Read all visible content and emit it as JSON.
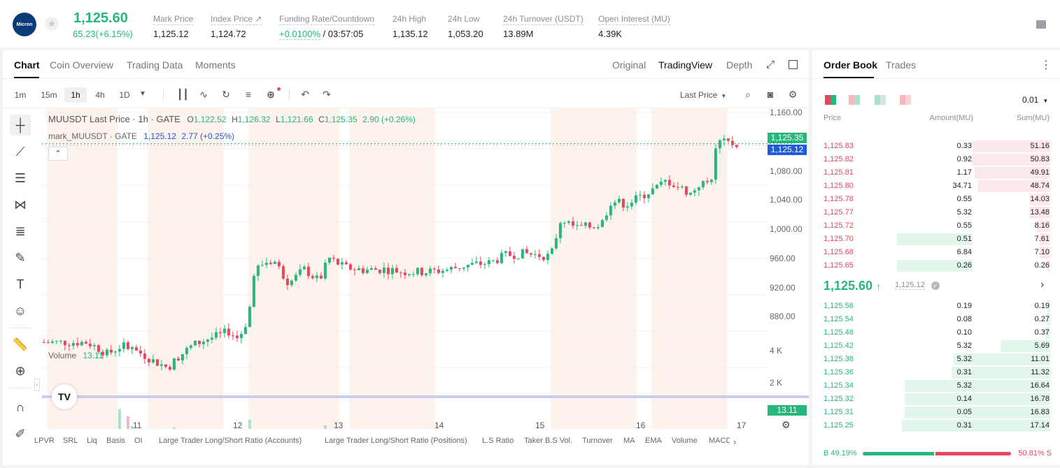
{
  "header": {
    "logo_text": "Micron",
    "last_price": "1,125.60",
    "change": "65.23(+6.15%)",
    "stats": [
      {
        "label": "Mark Price",
        "value": "1,125.12"
      },
      {
        "label": "Index Price ↗",
        "value": "1,124.72"
      },
      {
        "label": "Funding Rate/Countdown",
        "value": "+0.0100%",
        "value2": " / 03:57:05"
      },
      {
        "label": "24h High",
        "value": "1,135.12"
      },
      {
        "label": "24h Low",
        "value": "1,053.20"
      },
      {
        "label": "24h Turnover (USDT)",
        "value": "13.89M"
      },
      {
        "label": "Open Interest (MU)",
        "value": "4.39K"
      }
    ]
  },
  "chart_panel": {
    "tabs": [
      "Chart",
      "Coin Overview",
      "Trading Data",
      "Moments"
    ],
    "view_tabs": [
      "Original",
      "TradingView",
      "Depth"
    ],
    "intervals": [
      "1m",
      "15m",
      "1h",
      "4h",
      "1D"
    ],
    "active_interval": "1h",
    "price_type": "Last Price",
    "legend_main_name": "MUUSDT Last Price · 1h · GATE",
    "legend_o": "1,122.52",
    "legend_h": "1,126.32",
    "legend_l": "1,121.66",
    "legend_c": "1,125.35",
    "legend_chg": "2.90 (+0.26%)",
    "legend_mark_name": "mark_MUUSDT · GATE",
    "legend_mark_val": "1,125.12",
    "legend_mark_chg": "2.77 (+0.25%)",
    "volume_label": "Volume",
    "volume_value": "13.11",
    "indicators": [
      "LPVR",
      "SRL",
      "Liq",
      "Basis",
      "OI",
      "Large Trader Long/Short Ratio (Accounts)",
      "Large Trader Long/Short Ratio (Positions)",
      "L.S Ratio",
      "Taker B.S Vol.",
      "Turnover",
      "MA",
      "EMA",
      "Volume",
      "MACD"
    ],
    "colors": {
      "up": "#26b87a",
      "down": "#e5485d",
      "mark": "#1e5bd8"
    }
  },
  "chart_data": {
    "type": "candlestick",
    "symbol": "MUUSDT",
    "interval": "1h",
    "x_tick_labels": [
      "11",
      "12",
      "13",
      "14",
      "15",
      "16",
      "17"
    ],
    "y_tick_labels": [
      "1,160.00",
      "1,120.00",
      "1,080.00",
      "1,040.00",
      "1,000.00",
      "960.00",
      "920.00",
      "880.00"
    ],
    "ylim": [
      853,
      1161
    ],
    "volume_tick_labels": [
      "4 K",
      "2 K"
    ],
    "volume_ylim": [
      0,
      4500
    ],
    "last_price_tag": "1,125.35",
    "mark_price_tag": "1,125.12",
    "volume_tag": "13.11",
    "close_path": [
      {
        "day": 10.45,
        "close": 908
      },
      {
        "day": 10.55,
        "close": 902
      },
      {
        "day": 10.65,
        "close": 895
      },
      {
        "day": 10.8,
        "close": 905
      },
      {
        "day": 11.0,
        "close": 895
      },
      {
        "day": 11.1,
        "close": 888
      },
      {
        "day": 11.25,
        "close": 880
      },
      {
        "day": 11.35,
        "close": 892
      },
      {
        "day": 11.5,
        "close": 905
      },
      {
        "day": 11.65,
        "close": 912
      },
      {
        "day": 11.75,
        "close": 915
      },
      {
        "day": 11.85,
        "close": 920
      },
      {
        "day": 11.95,
        "close": 912
      },
      {
        "day": 12.05,
        "close": 935
      },
      {
        "day": 12.1,
        "close": 985
      },
      {
        "day": 12.2,
        "close": 995
      },
      {
        "day": 12.3,
        "close": 998
      },
      {
        "day": 12.45,
        "close": 972
      },
      {
        "day": 12.6,
        "close": 988
      },
      {
        "day": 12.75,
        "close": 975
      },
      {
        "day": 12.85,
        "close": 1000
      },
      {
        "day": 13.0,
        "close": 990
      },
      {
        "day": 13.2,
        "close": 987
      },
      {
        "day": 13.4,
        "close": 988
      },
      {
        "day": 13.6,
        "close": 985
      },
      {
        "day": 13.8,
        "close": 985
      },
      {
        "day": 14.0,
        "close": 987
      },
      {
        "day": 14.2,
        "close": 992
      },
      {
        "day": 14.45,
        "close": 995
      },
      {
        "day": 14.6,
        "close": 1003
      },
      {
        "day": 14.75,
        "close": 1005
      },
      {
        "day": 14.8,
        "close": 1005
      },
      {
        "day": 15.05,
        "close": 1002
      },
      {
        "day": 15.15,
        "close": 1043
      },
      {
        "day": 15.3,
        "close": 1033
      },
      {
        "day": 15.45,
        "close": 1035
      },
      {
        "day": 15.55,
        "close": 1037
      },
      {
        "day": 15.65,
        "close": 1063
      },
      {
        "day": 15.8,
        "close": 1059
      },
      {
        "day": 15.95,
        "close": 1068
      },
      {
        "day": 16.1,
        "close": 1077
      },
      {
        "day": 16.2,
        "close": 1085
      },
      {
        "day": 16.25,
        "close": 1082
      },
      {
        "day": 16.35,
        "close": 1076
      },
      {
        "day": 16.45,
        "close": 1070
      },
      {
        "day": 16.5,
        "close": 1080
      },
      {
        "day": 16.6,
        "close": 1082
      },
      {
        "day": 16.65,
        "close": 1090
      },
      {
        "day": 16.7,
        "close": 1127
      },
      {
        "day": 16.8,
        "close": 1126
      },
      {
        "day": 16.9,
        "close": 1125
      }
    ]
  },
  "order_book": {
    "tabs": [
      "Order Book",
      "Trades"
    ],
    "precision": "0.01",
    "headers": {
      "price": "Price",
      "amount": "Amount(MU)",
      "sum": "Sum(MU)"
    },
    "asks": [
      {
        "price": "1,125.83",
        "amount": "0.33",
        "sum": "51.16",
        "sum_frac": 0.3,
        "amt_frac": 0
      },
      {
        "price": "1,125.82",
        "amount": "0.92",
        "sum": "50.83",
        "sum_frac": 0.3,
        "amt_frac": 0
      },
      {
        "price": "1,125.81",
        "amount": "1.17",
        "sum": "49.91",
        "sum_frac": 0.29,
        "amt_frac": 0
      },
      {
        "price": "1,125.80",
        "amount": "34.71",
        "sum": "48.74",
        "sum_frac": 0.28,
        "amt_frac": 0
      },
      {
        "price": "1,125.78",
        "amount": "0.55",
        "sum": "14.03",
        "sum_frac": 0.08,
        "amt_frac": 0
      },
      {
        "price": "1,125.77",
        "amount": "5.32",
        "sum": "13.48",
        "sum_frac": 0.08,
        "amt_frac": 0
      },
      {
        "price": "1,125.72",
        "amount": "0.55",
        "sum": "8.16",
        "sum_frac": 0.05,
        "amt_frac": 0
      },
      {
        "price": "1,125.70",
        "amount": "0.51",
        "sum": "7.61",
        "sum_frac": 0.04,
        "amt_frac": 0.3
      },
      {
        "price": "1,125.68",
        "amount": "6.84",
        "sum": "7.10",
        "sum_frac": 0.04,
        "amt_frac": 0
      },
      {
        "price": "1,125.65",
        "amount": "0.26",
        "sum": "0.26",
        "sum_frac": 0.01,
        "amt_frac": 0.3
      }
    ],
    "mid_price": "1,125.60",
    "mid_arrow": "↑",
    "mark_price": "1,125.12",
    "bids": [
      {
        "price": "1,125.56",
        "amount": "0.19",
        "sum": "0.19",
        "sum_frac": 0.01
      },
      {
        "price": "1,125.54",
        "amount": "0.08",
        "sum": "0.27",
        "sum_frac": 0.01
      },
      {
        "price": "1,125.48",
        "amount": "0.10",
        "sum": "0.37",
        "sum_frac": 0.02
      },
      {
        "price": "1,125.42",
        "amount": "5.32",
        "sum": "5.69",
        "sum_frac": 0.19
      },
      {
        "price": "1,125.38",
        "amount": "5.32",
        "sum": "11.01",
        "sum_frac": 0.37
      },
      {
        "price": "1,125.36",
        "amount": "0.31",
        "sum": "11.32",
        "sum_frac": 0.38
      },
      {
        "price": "1,125.34",
        "amount": "5.32",
        "sum": "16.64",
        "sum_frac": 0.56
      },
      {
        "price": "1,125.32",
        "amount": "0.14",
        "sum": "16.78",
        "sum_frac": 0.56
      },
      {
        "price": "1,125.31",
        "amount": "0.05",
        "sum": "16.83",
        "sum_frac": 0.56
      },
      {
        "price": "1,125.25",
        "amount": "0.31",
        "sum": "17.14",
        "sum_frac": 0.57
      }
    ],
    "buy_ratio": "B 49.19%",
    "sell_ratio": "50.81% S",
    "buy_fraction": 0.4919
  }
}
